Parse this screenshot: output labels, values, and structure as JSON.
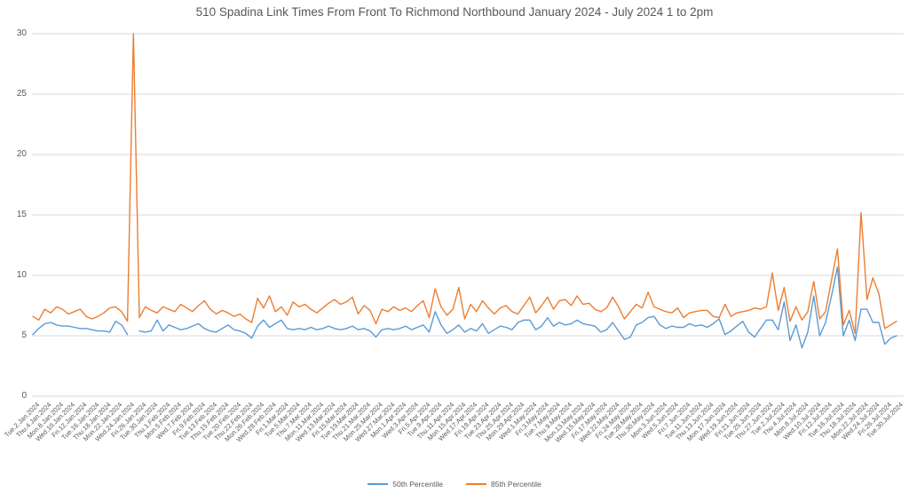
{
  "title": "510 Spadina Link Times From Front To Richmond Northbound January 2024 - July 2024 1 to 2pm",
  "colors": {
    "series_50th": "#5B9BD5",
    "series_85th": "#ED7D31",
    "gridline": "#D9D9D9",
    "text": "#595959",
    "background": "#FFFFFF"
  },
  "legend": {
    "items": [
      {
        "label": "50th Percentile",
        "color": "#5B9BD5"
      },
      {
        "label": "85th Percentile",
        "color": "#ED7D31"
      }
    ],
    "position": "bottom-center"
  },
  "chart_data": {
    "type": "line",
    "title": "510 Spadina Link Times From Front To Richmond Northbound January 2024 - July 2024 1 to 2pm",
    "xlabel": "",
    "ylabel": "",
    "ylim": [
      0,
      30
    ],
    "y_ticks": [
      0,
      5,
      10,
      15,
      20,
      25,
      30
    ],
    "grid": true,
    "legend_position": "bottom",
    "points_total": 147,
    "x_tick_every_nth_point": 2,
    "x_tick_labels": [
      "Tue.2.Jan.2024",
      "Thu.4.Jan.2024",
      "Mon.8.Jan.2024",
      "Wed.10.Jan.2024",
      "Fri.12.Jan.2024",
      "Tue.16.Jan.2024",
      "Thu.18.Jan.2024",
      "Mon.22.Jan.2024",
      "Wed.24.Jan.2024",
      "Fri.26.Jan.2024",
      "Tue.30.Jan.2024",
      "Thu.1.Feb.2024",
      "Mon.5.Feb.2024",
      "Wed.7.Feb.2024",
      "Fri.9.Feb.2024",
      "Tue.13.Feb.2024",
      "Thu.15.Feb.2024",
      "Tue.20.Feb.2024",
      "Thu.22.Feb.2024",
      "Mon.26.Feb.2024",
      "Wed.28.Feb.2024",
      "Fri.1.Mar.2024",
      "Tue.5.Mar.2024",
      "Thu.7.Mar.2024",
      "Mon.11.Mar.2024",
      "Wed.13.Mar.2024",
      "Fri.15.Mar.2024",
      "Tue.19.Mar.2024",
      "Thu.21.Mar.2024",
      "Mon.25.Mar.2024",
      "Wed.27.Mar.2024",
      "Mon.1.Apr.2024",
      "Wed.3.Apr.2024",
      "Fri.5.Apr.2024",
      "Tue.9.Apr.2024",
      "Thu.11.Apr.2024",
      "Mon.15.Apr.2024",
      "Wed.17.Apr.2024",
      "Fri.19.Apr.2024",
      "Tue.23.Apr.2024",
      "Thu.25.Apr.2024",
      "Mon.29.Apr.2024",
      "Wed.1.May.2024",
      "Fri.3.May.2024",
      "Tue.7.May.2024",
      "Thu.9.May.2024",
      "Mon.13.May.2024",
      "Wed.15.May.2024",
      "Fri.17.May.2024",
      "Wed.22.May.2024",
      "Fri.24.May.2024",
      "Tue.28.May.2024",
      "Thu.30.May.2024",
      "Mon.3.Jun.2024",
      "Wed.5.Jun.2024",
      "Fri.7.Jun.2024",
      "Tue.11.Jun.2024",
      "Thu.13.Jun.2024",
      "Mon.17.Jun.2024",
      "Wed.19.Jun.2024",
      "Fri.21.Jun.2024",
      "Tue.25.Jun.2024",
      "Thu.27.Jun.2024",
      "Tue.2.Jul.2024",
      "Thu.4.Jul.2024",
      "Mon.8.Jul.2024",
      "Wed.10.Jul.2024",
      "Fri.12.Jul.2024",
      "Tue.16.Jul.2024",
      "Thu.18.Jul.2024",
      "Mon.22.Jul.2024",
      "Wed.24.Jul.2024",
      "Fri.26.Jul.2024",
      "Tue.30.Jul.2024"
    ],
    "series": [
      {
        "name": "50th Percentile",
        "color": "#5B9BD5",
        "values": [
          5.1,
          5.6,
          6.0,
          6.1,
          5.9,
          5.8,
          5.8,
          5.7,
          5.6,
          5.6,
          5.5,
          5.4,
          5.4,
          5.3,
          6.2,
          5.9,
          5.1,
          null,
          5.4,
          5.3,
          5.4,
          6.3,
          5.4,
          5.9,
          5.7,
          5.5,
          5.6,
          5.8,
          6.0,
          5.6,
          5.4,
          5.3,
          5.6,
          5.9,
          5.5,
          5.4,
          5.2,
          4.8,
          5.8,
          6.3,
          5.7,
          6.0,
          6.3,
          5.6,
          5.5,
          5.6,
          5.5,
          5.7,
          5.5,
          5.6,
          5.8,
          5.6,
          5.5,
          5.6,
          5.8,
          5.5,
          5.6,
          5.4,
          4.9,
          5.5,
          5.6,
          5.5,
          5.6,
          5.8,
          5.5,
          5.7,
          5.9,
          5.3,
          7.0,
          5.9,
          5.2,
          5.5,
          5.9,
          5.3,
          5.6,
          5.4,
          6.0,
          5.2,
          5.5,
          5.8,
          5.7,
          5.5,
          6.1,
          6.3,
          6.3,
          5.5,
          5.8,
          6.5,
          5.8,
          6.1,
          5.9,
          6.0,
          6.3,
          6.0,
          5.9,
          5.8,
          5.3,
          5.5,
          6.1,
          5.4,
          4.7,
          4.9,
          5.9,
          6.1,
          6.5,
          6.6,
          5.9,
          5.6,
          5.8,
          5.7,
          5.7,
          6.0,
          5.8,
          5.9,
          5.7,
          6.0,
          6.4,
          5.1,
          5.4,
          5.8,
          6.2,
          5.3,
          4.9,
          5.6,
          6.3,
          6.3,
          5.5,
          7.8,
          4.6,
          5.9,
          4.0,
          5.3,
          8.3,
          5.0,
          6.1,
          8.3,
          10.7,
          5.0,
          6.3,
          4.6,
          7.2,
          7.2,
          6.1,
          6.1,
          4.3,
          4.8,
          5.0
        ]
      },
      {
        "name": "85th Percentile",
        "color": "#ED7D31",
        "values": [
          6.6,
          6.3,
          7.2,
          6.9,
          7.4,
          7.2,
          6.8,
          7.0,
          7.2,
          6.6,
          6.4,
          6.6,
          6.9,
          7.3,
          7.4,
          7.0,
          6.2,
          30,
          6.5,
          7.4,
          7.1,
          6.9,
          7.4,
          7.2,
          7.0,
          7.6,
          7.3,
          7.0,
          7.5,
          7.9,
          7.2,
          6.8,
          7.1,
          6.9,
          6.6,
          6.8,
          6.4,
          6.1,
          8.1,
          7.3,
          8.3,
          7.0,
          7.4,
          6.7,
          7.8,
          7.4,
          7.6,
          7.2,
          6.9,
          7.3,
          7.7,
          8.0,
          7.6,
          7.8,
          8.2,
          6.8,
          7.5,
          7.1,
          6.0,
          7.2,
          7.0,
          7.4,
          7.1,
          7.3,
          7.0,
          7.5,
          7.9,
          6.5,
          8.9,
          7.4,
          6.7,
          7.2,
          9.0,
          6.4,
          7.6,
          7.0,
          7.9,
          7.3,
          6.8,
          7.3,
          7.5,
          7.0,
          6.8,
          7.5,
          8.2,
          6.9,
          7.5,
          8.2,
          7.2,
          7.9,
          8.0,
          7.5,
          8.3,
          7.6,
          7.7,
          7.2,
          7.0,
          7.3,
          8.2,
          7.4,
          6.4,
          7.0,
          7.6,
          7.3,
          8.6,
          7.4,
          7.2,
          7.0,
          6.9,
          7.3,
          6.5,
          6.9,
          7.0,
          7.1,
          7.1,
          6.6,
          6.5,
          7.6,
          6.6,
          6.9,
          7.0,
          7.1,
          7.3,
          7.2,
          7.4,
          10.2,
          7.1,
          9.0,
          6.2,
          7.4,
          6.3,
          7.0,
          9.5,
          6.4,
          7.0,
          9.6,
          12.2,
          5.9,
          7.1,
          5.2,
          15.2,
          8.0,
          9.8,
          8.5,
          5.6,
          5.9,
          6.2
        ]
      }
    ]
  }
}
